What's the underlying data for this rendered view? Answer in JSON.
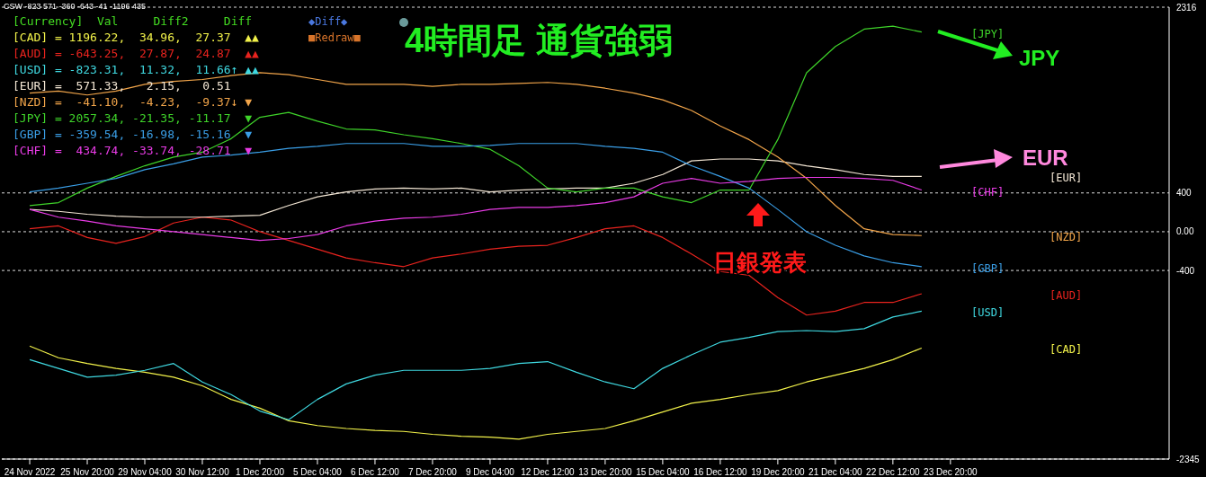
{
  "chart_data": {
    "type": "line",
    "title": "4時間足 通貨強弱",
    "categories": [
      "24 Nov 2022",
      null,
      "25 Nov 20:00",
      null,
      "29 Nov 04:00",
      null,
      "30 Nov 12:00",
      null,
      "1 Dec 20:00",
      null,
      "5 Dec 04:00",
      null,
      "6 Dec 12:00",
      null,
      "7 Dec 20:00",
      null,
      "9 Dec 04:00",
      null,
      "12 Dec 12:00",
      null,
      "13 Dec 20:00",
      null,
      "15 Dec 04:00",
      null,
      "16 Dec 12:00",
      null,
      "19 Dec 20:00",
      null,
      "21 Dec 04:00",
      null,
      "22 Dec 12:00",
      null,
      "23 Dec 20:00",
      null,
      null,
      null,
      null,
      null,
      null,
      null
    ],
    "series": [
      {
        "name": "[CAD]",
        "color": "#f2f24a",
        "values": [
          -1180,
          -1300,
          -1360,
          -1410,
          -1450,
          -1500,
          -1590,
          -1730,
          -1820,
          -1950,
          -2000,
          -2030,
          -2050,
          -2060,
          -2090,
          -2110,
          -2120,
          -2140,
          -2090,
          -2060,
          -2030,
          -1950,
          -1860,
          -1770,
          -1730,
          -1680,
          -1640,
          -1550,
          -1480,
          -1410,
          -1320,
          -1200,
          null,
          null,
          null,
          null,
          null,
          null,
          null,
          null
        ]
      },
      {
        "name": "[AUD]",
        "color": "#e8231e",
        "values": [
          30,
          60,
          -60,
          -120,
          -50,
          90,
          150,
          120,
          0,
          -90,
          -180,
          -270,
          -320,
          -360,
          -270,
          -230,
          -180,
          -150,
          -140,
          -60,
          30,
          60,
          -60,
          -230,
          -410,
          -450,
          -680,
          -860,
          -820,
          -730,
          -730,
          -640,
          null,
          null,
          null,
          null,
          null,
          null,
          null,
          null
        ]
      },
      {
        "name": "[USD]",
        "color": "#3fd8e0",
        "values": [
          -1320,
          -1410,
          -1500,
          -1480,
          -1430,
          -1360,
          -1550,
          -1680,
          -1850,
          -1940,
          -1730,
          -1570,
          -1480,
          -1430,
          -1430,
          -1430,
          -1410,
          -1360,
          -1340,
          -1450,
          -1550,
          -1620,
          -1410,
          -1270,
          -1140,
          -1090,
          -1030,
          -1020,
          -1030,
          -1000,
          -880,
          -820,
          null,
          null,
          null,
          null,
          null,
          null,
          null,
          null
        ]
      },
      {
        "name": "[EUR]",
        "color": "#f3e6d4",
        "values": [
          230,
          210,
          180,
          160,
          150,
          150,
          150,
          160,
          170,
          270,
          360,
          410,
          440,
          450,
          440,
          450,
          410,
          430,
          440,
          450,
          450,
          500,
          590,
          730,
          750,
          750,
          730,
          680,
          640,
          590,
          570,
          570,
          null,
          null,
          null,
          null,
          null,
          null,
          null,
          null
        ]
      },
      {
        "name": "[NZD]",
        "color": "#f2a54a",
        "values": [
          1430,
          1450,
          1410,
          1450,
          1520,
          1550,
          1570,
          1610,
          1640,
          1620,
          1570,
          1520,
          1520,
          1520,
          1500,
          1520,
          1520,
          1530,
          1540,
          1520,
          1480,
          1430,
          1360,
          1250,
          1090,
          950,
          770,
          550,
          270,
          30,
          -30,
          -40,
          null,
          null,
          null,
          null,
          null,
          null,
          null,
          null
        ]
      },
      {
        "name": "[JPY]",
        "color": "#3fd42a",
        "values": [
          270,
          300,
          450,
          570,
          680,
          770,
          820,
          960,
          1180,
          1230,
          1140,
          1060,
          1050,
          1000,
          960,
          910,
          850,
          680,
          450,
          410,
          450,
          450,
          360,
          300,
          430,
          430,
          950,
          1640,
          1910,
          2090,
          2120,
          2060,
          null,
          null,
          null,
          null,
          null,
          null,
          null,
          null
        ]
      },
      {
        "name": "[GBP]",
        "color": "#3a9ee6",
        "values": [
          410,
          450,
          500,
          550,
          640,
          700,
          770,
          790,
          820,
          860,
          880,
          910,
          910,
          910,
          880,
          880,
          890,
          910,
          910,
          910,
          880,
          860,
          820,
          680,
          570,
          450,
          230,
          0,
          -140,
          -250,
          -320,
          -360,
          null,
          null,
          null,
          null,
          null,
          null,
          null,
          null
        ]
      },
      {
        "name": "[CHF]",
        "color": "#e93be6",
        "values": [
          230,
          150,
          110,
          60,
          30,
          0,
          -30,
          -60,
          -90,
          -70,
          -30,
          60,
          110,
          140,
          150,
          180,
          230,
          250,
          250,
          270,
          300,
          360,
          500,
          550,
          500,
          520,
          550,
          560,
          560,
          550,
          530,
          430,
          null,
          null,
          null,
          null,
          null,
          null,
          null,
          null
        ]
      }
    ],
    "ylim": [
      -2345,
      2316
    ],
    "yticks": [
      2316,
      400,
      {
        "value": 0,
        "label": "0.00"
      },
      -400,
      -2345
    ],
    "grid": "y",
    "marker": "none",
    "line_style": "solid",
    "annotations": [
      "CSW -823 571 -360 -643 -41 -1196 435",
      "[Currency]  Val     Diff2     Diff",
      "[CAD] = 1196.22,  34.96,  27.37  ▲▲",
      "[AUD] = -643.25,  27.87,  24.87  ▲▲",
      "[USD] = -823.31,  11.32,  11.66↑ ▲▲",
      "[EUR] =  571.33,   2.15,   0.51",
      "[NZD] =  -41.10,  -4.23,  -9.37↓ ▼",
      "[JPY] = 2057.34, -21.35, -11.17  ▼",
      "[GBP] = -359.54, -16.98, -15.16  ▼",
      "[CHF] =  434.74, -33.74, -28.71  ▼",
      "◆Diff◆",
      "■Redraw■",
      "JPY",
      "EUR",
      "日銀発表"
    ]
  }
}
